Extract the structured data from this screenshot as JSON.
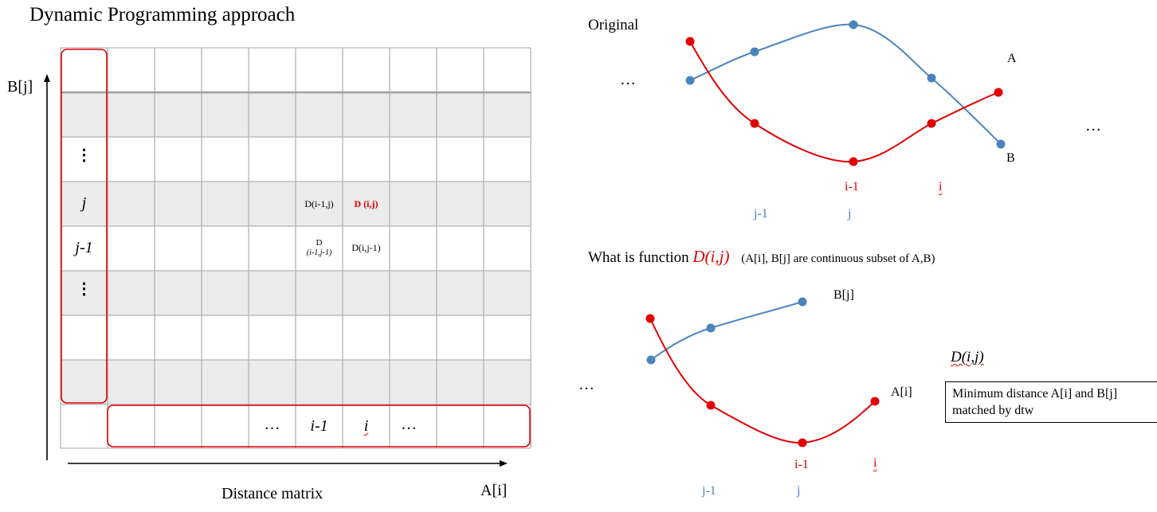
{
  "title": "Dynamic Programming approach",
  "left_diagram": {
    "y_axis_label": "B[j]",
    "x_axis_label": "A[i]",
    "caption": "Distance matrix",
    "row_labels": [
      "",
      "",
      "⋮",
      "j",
      "j-1",
      "⋮",
      "",
      "",
      ""
    ],
    "bottom_labels": [
      "",
      "",
      "",
      "",
      "…",
      "i-1",
      "i",
      "…",
      "",
      ""
    ],
    "cells": {
      "d_im1_j": "D(i-1,j)",
      "d_i_j": "D (i,j)",
      "d_im1_jm1_top": "D",
      "d_im1_jm1_bottom": "(i-1,j-1)",
      "d_i_jm1": "D(i,j-1)"
    }
  },
  "original_plot": {
    "title": "Original",
    "left_ellipsis": "…",
    "right_ellipsis": "…",
    "series_a_label": "A",
    "series_b_label": "B",
    "red_ticks": [
      "i-1",
      "i"
    ],
    "blue_ticks": [
      "j-1",
      "j"
    ]
  },
  "function_section": {
    "question_prefix": "What is function ",
    "question_func": "D(i,j)",
    "question_note": "(A[i], B[j] are continuous subset of A,B)",
    "left_ellipsis": "…",
    "series_a_label": "A[i]",
    "series_b_label": "B[j]",
    "func_label": "D(i,j)",
    "definition_line1": "Minimum distance A[i] and B[j]",
    "definition_line2": "matched by dtw",
    "red_ticks": [
      "i-1",
      "i"
    ],
    "blue_ticks": [
      "j-1",
      "j"
    ]
  },
  "colors": {
    "series_a": "#e00000",
    "series_b": "#4a84bd",
    "grid_line": "#b3b3b3",
    "shaded_row": "#ebebeb",
    "highlight_box": "#e00000"
  }
}
